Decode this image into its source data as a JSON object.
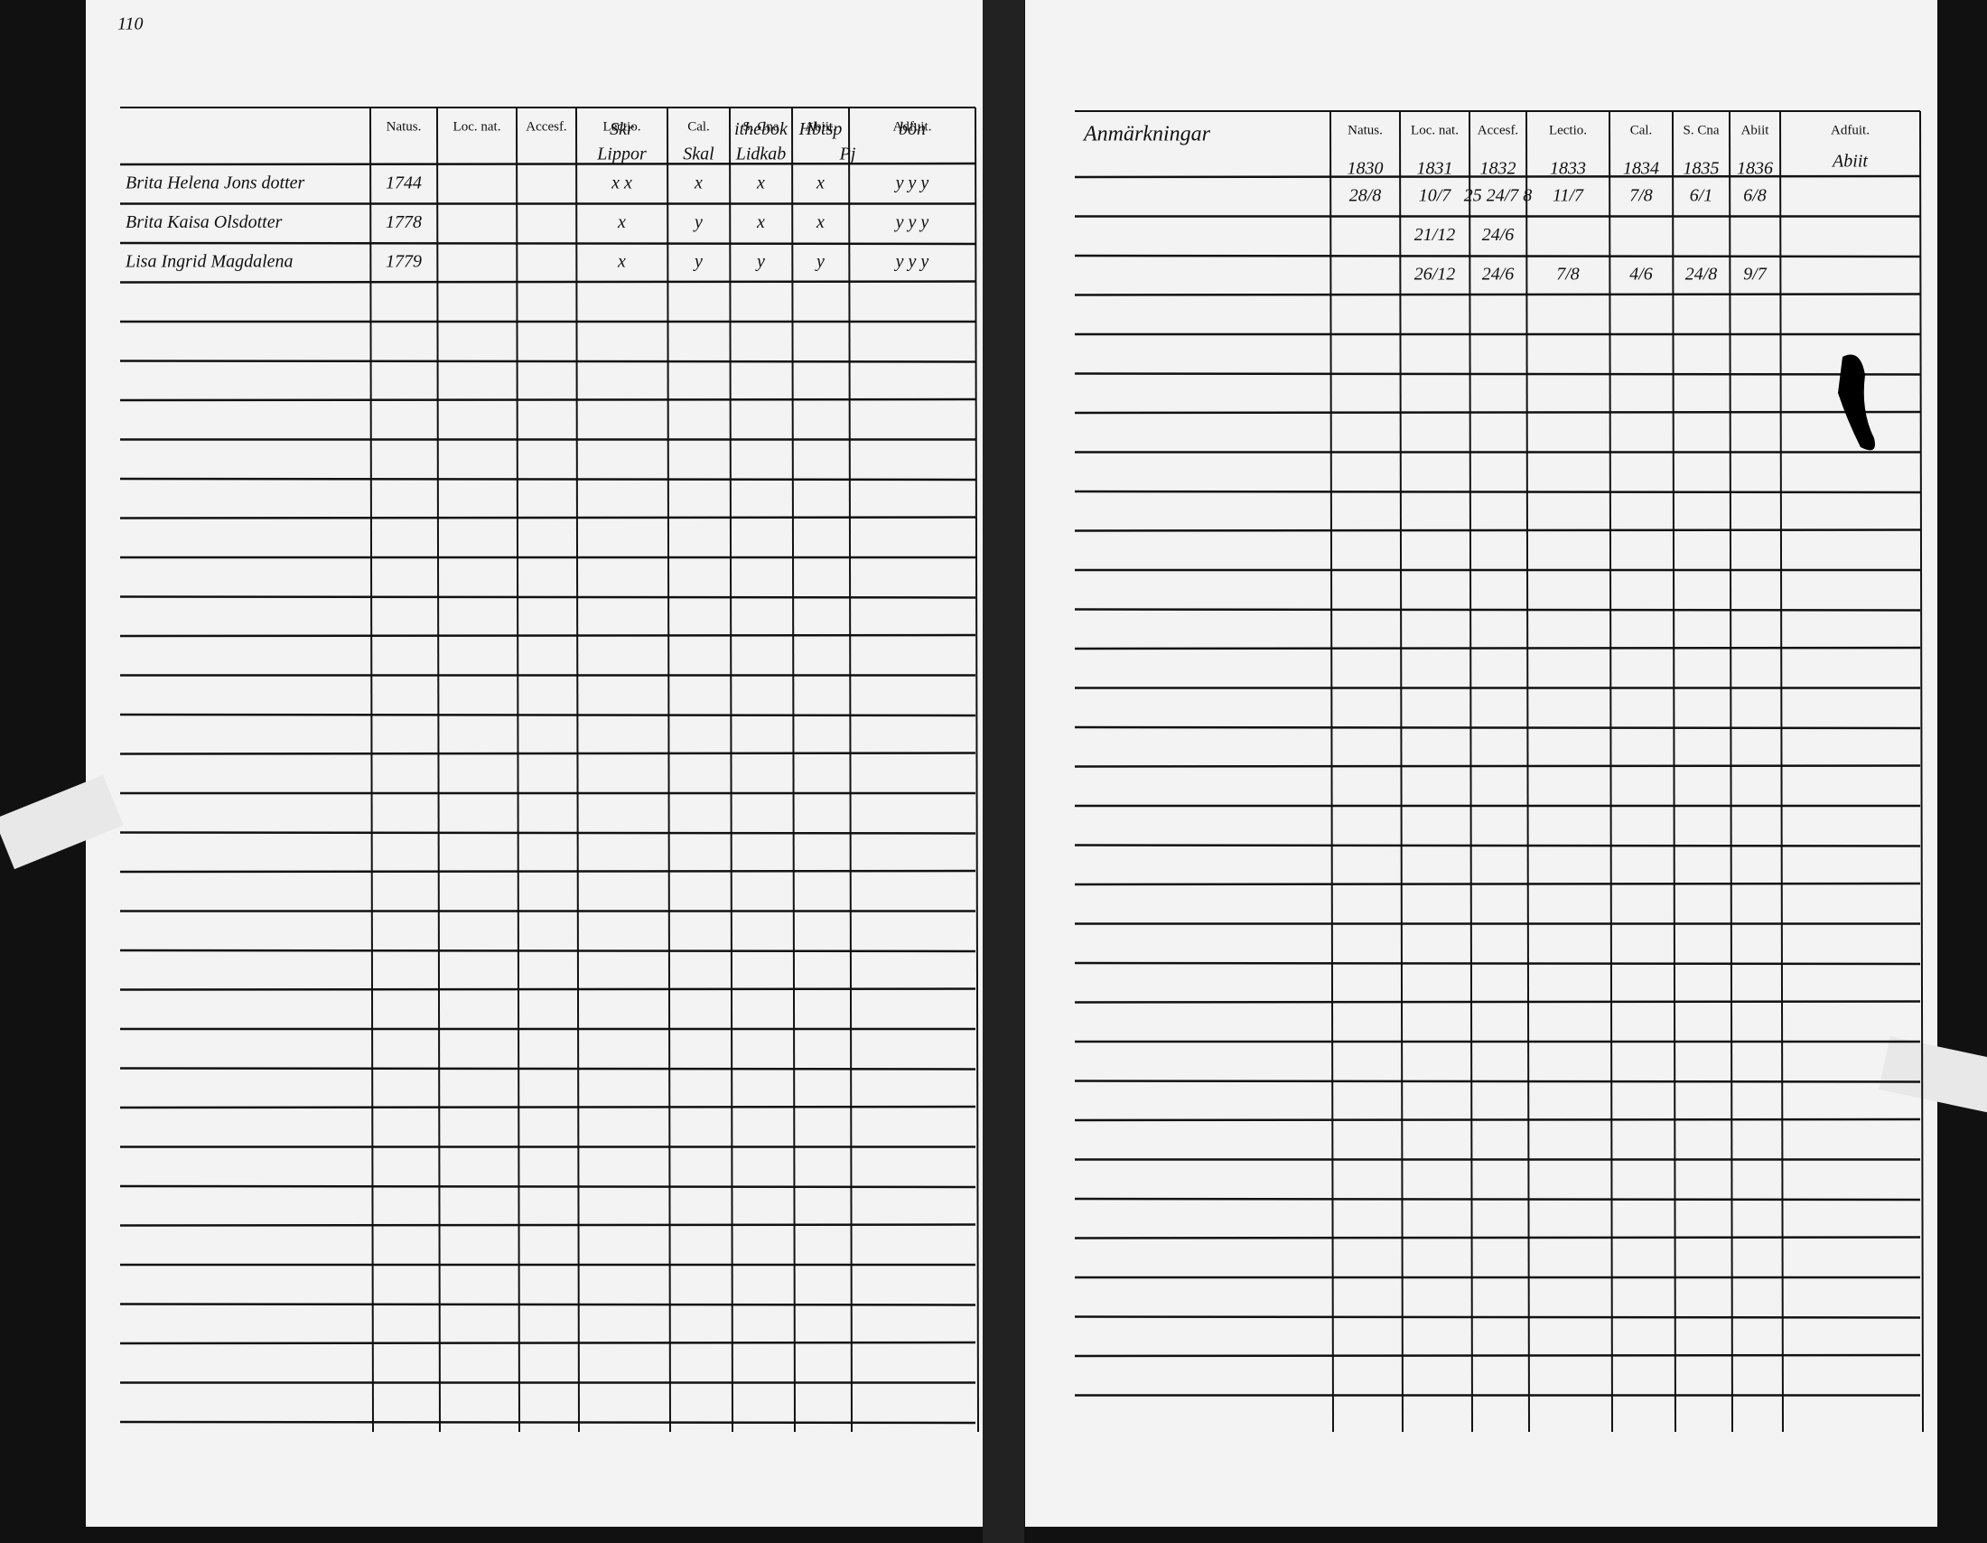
{
  "page_number": "110",
  "left_page": {
    "headers": [
      "Natus.",
      "Loc. nat.",
      "Accesf.",
      "Lectio.",
      "Cal.",
      "S. Cna",
      "Abiit.",
      "Adfuit."
    ],
    "header_annotations": [
      "Lippor",
      "Skal",
      "Lidkab",
      "Pj"
    ],
    "rows": [
      [
        null,
        null,
        null,
        null,
        "Skr",
        null,
        "ithebok",
        "Hbtsp",
        "bön"
      ],
      [
        "Brita Helena Jons dotter",
        "1744",
        null,
        null,
        "x x",
        "x",
        "x",
        "x",
        "y y y"
      ],
      [
        "Brita Kaisa Olsdotter",
        "1778",
        null,
        null,
        "x",
        "y",
        "x",
        "x",
        "y y y"
      ],
      [
        "Lisa Ingrid Magdalena",
        "1779",
        null,
        null,
        "x",
        "y",
        "y",
        "y",
        "y y y"
      ]
    ]
  },
  "right_page": {
    "title": "Anmärkningar",
    "headers": [
      "Natus.",
      "Loc. nat.",
      "Accesf.",
      "Lectio.",
      "Cal.",
      "S. Cna",
      "Abiit",
      "Adfuit."
    ],
    "header_annotation": "Abiit",
    "rows": [
      [
        null,
        "1830",
        "1831",
        "1832",
        "1833",
        "1834",
        "1835",
        "1836",
        null
      ],
      [
        null,
        "28/8",
        "10/7",
        "25 24/7 8",
        "11/7",
        "7/8",
        "6/1",
        "6/8",
        null
      ],
      [
        null,
        null,
        "21/12",
        "24/6",
        null,
        null,
        null,
        null,
        null
      ],
      [
        null,
        null,
        "26/12",
        "24/6",
        "7/8",
        "4/6",
        "24/8",
        "9/7",
        null
      ]
    ]
  }
}
